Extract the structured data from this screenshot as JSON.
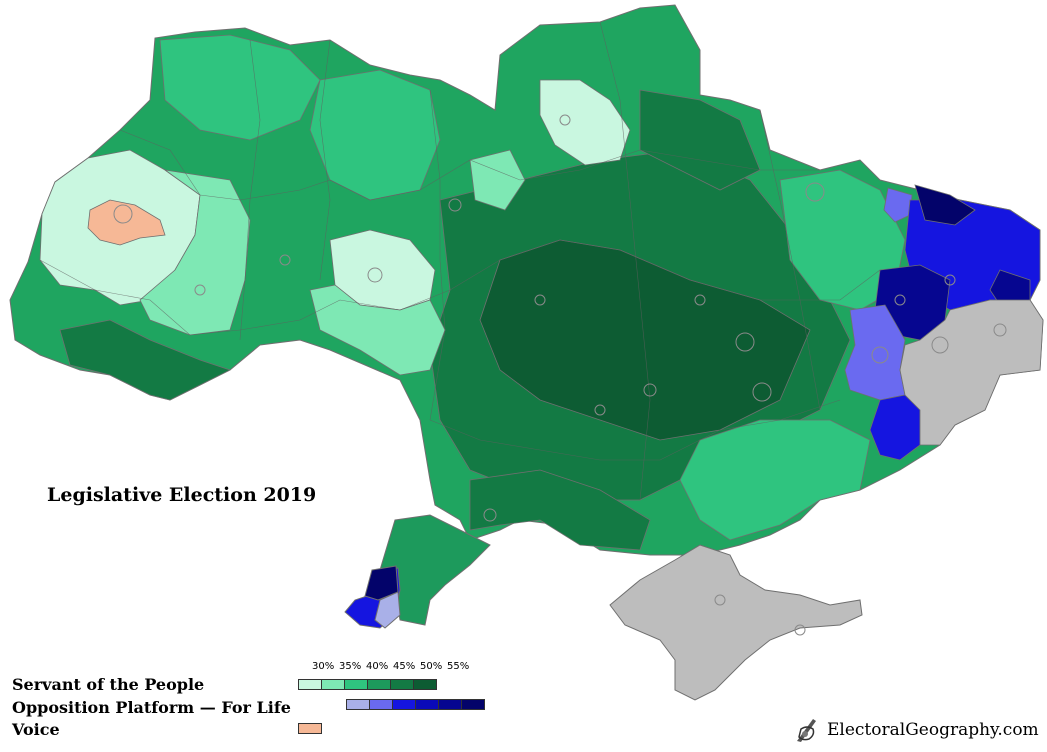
{
  "title": "Legislative Election 2019",
  "legend": {
    "percent_labels": [
      "30%",
      "35%",
      "40%",
      "45%",
      "50%",
      "55%"
    ],
    "parties": [
      {
        "name": "Servant of the People",
        "colors": [
          "#c9f7e0",
          "#7ee8b4",
          "#2fc47f",
          "#1d9a5c",
          "#137a44",
          "#0d5c33"
        ]
      },
      {
        "name": "Opposition Platform — For Life",
        "colors": [
          "#a9b0e8",
          "#6a6af0",
          "#1515e0",
          "#0a0ab8",
          "#060690",
          "#03036a"
        ]
      },
      {
        "name": "Voice",
        "colors": [
          "#f6b896"
        ]
      }
    ]
  },
  "no_data_color": "#bdbdbd",
  "credit": "ElectoralGeography.com",
  "credit_icon": "quill-and-scroll-icon"
}
